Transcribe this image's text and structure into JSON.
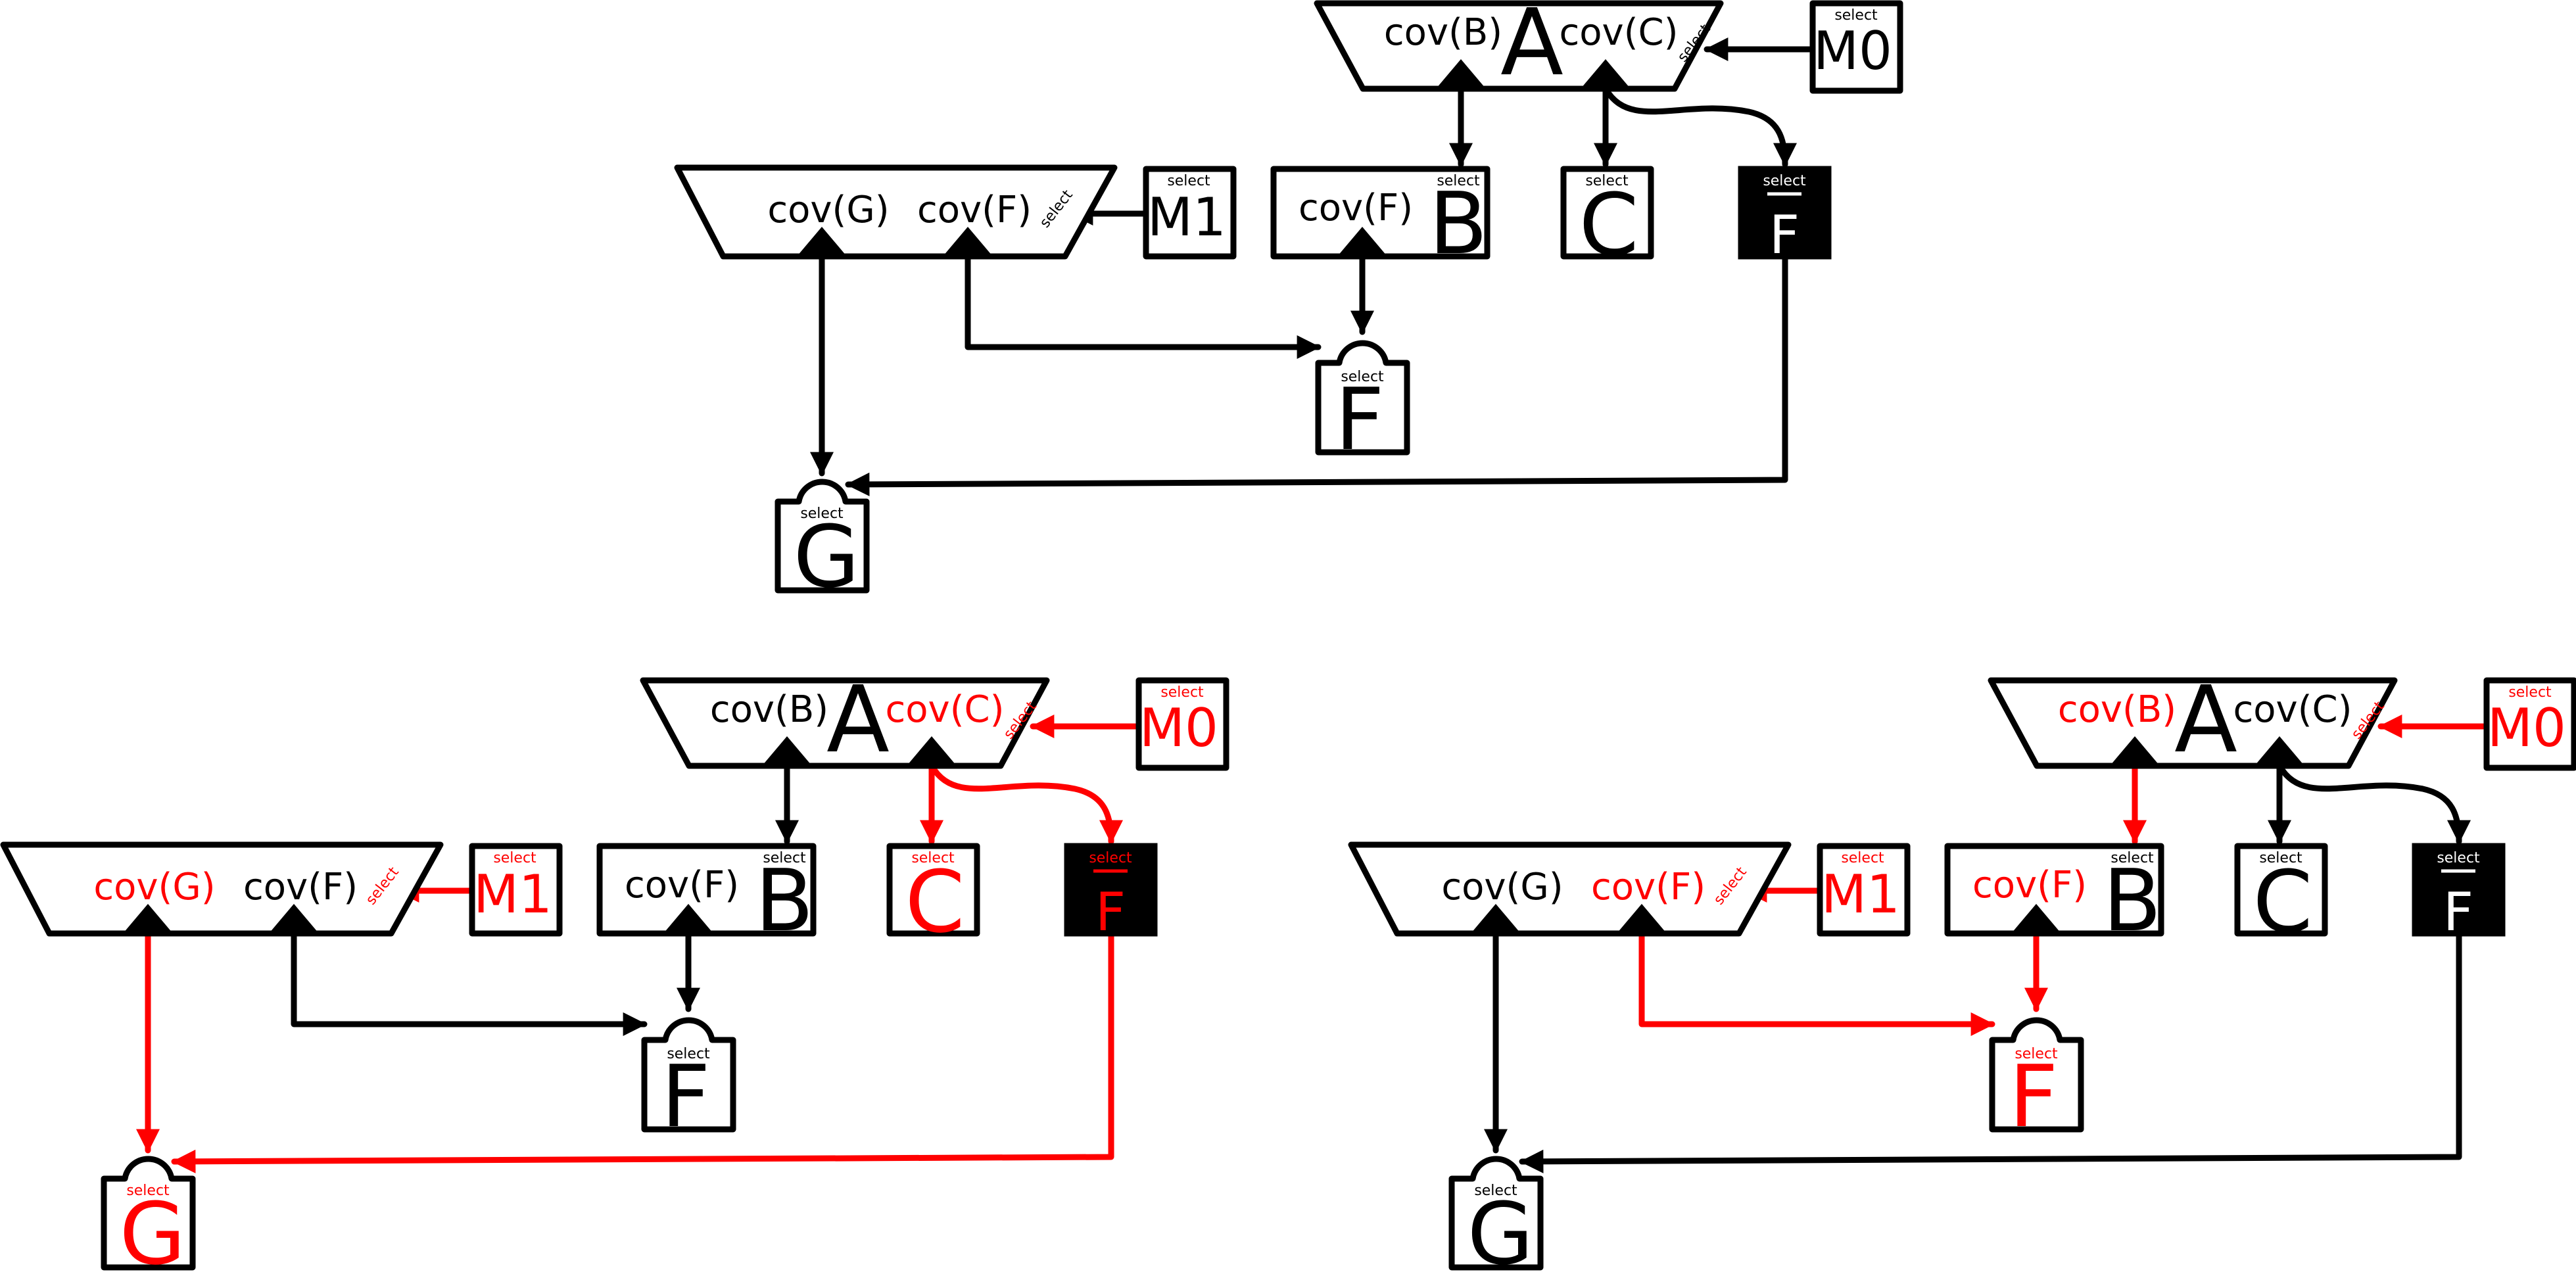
{
  "colors": {
    "black": "#000000",
    "red": "#ff0000",
    "white": "#ffffff"
  },
  "labels": {
    "select": "select",
    "mux_A": "A",
    "cov_B": "cov(B)",
    "cov_C": "cov(C)",
    "cov_G": "cov(G)",
    "cov_F": "cov(F)",
    "M0": "M0",
    "M1": "M1",
    "B": "B",
    "C": "C",
    "F": "F",
    "F_bar": "F",
    "G": "G"
  },
  "panels": [
    {
      "id": "top",
      "highlight": {
        "cov_B": false,
        "cov_C": false,
        "cov_G": false,
        "cov_F": false,
        "M0": false,
        "M1": false,
        "box_B_cov": false,
        "C": false,
        "F_bar": false,
        "F_gate": false,
        "G_gate": false,
        "w_M0": false,
        "w_B": false,
        "w_C": false,
        "w_Fbar": false,
        "w_M1": false,
        "w_covF_to_F": false,
        "w_B_to_F": false,
        "w_covG_to_G": false,
        "w_Fbar_to_G": false
      }
    },
    {
      "id": "bottom-left",
      "highlight": {
        "cov_B": false,
        "cov_C": true,
        "cov_G": true,
        "cov_F": false,
        "M0": true,
        "M1": true,
        "box_B_cov": false,
        "C": true,
        "F_bar": true,
        "F_gate": false,
        "G_gate": true,
        "w_M0": true,
        "w_B": false,
        "w_C": true,
        "w_Fbar": true,
        "w_M1": true,
        "w_covF_to_F": false,
        "w_B_to_F": false,
        "w_covG_to_G": true,
        "w_Fbar_to_G": true
      }
    },
    {
      "id": "bottom-right",
      "highlight": {
        "cov_B": true,
        "cov_C": false,
        "cov_G": false,
        "cov_F": true,
        "M0": true,
        "M1": true,
        "box_B_cov": true,
        "C": false,
        "F_bar": false,
        "F_gate": true,
        "G_gate": false,
        "w_M0": true,
        "w_B": true,
        "w_C": false,
        "w_Fbar": false,
        "w_M1": true,
        "w_covF_to_F": true,
        "w_B_to_F": true,
        "w_covG_to_G": false,
        "w_Fbar_to_G": false
      }
    }
  ]
}
